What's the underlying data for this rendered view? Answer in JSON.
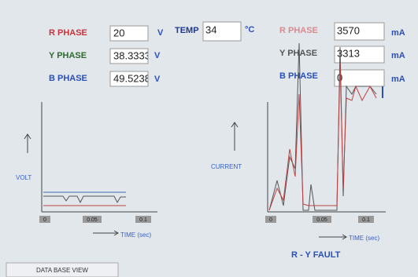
{
  "voltage_panel": {
    "rows": [
      {
        "label": "R PHASE",
        "value": "20",
        "unit": "V"
      },
      {
        "label": "Y PHASE",
        "value": "38.3333",
        "unit": "V"
      },
      {
        "label": "B PHASE",
        "value": "49.5238",
        "unit": "V"
      }
    ]
  },
  "temperature": {
    "label": "TEMP",
    "value": "34",
    "unit": "°C"
  },
  "current_panel": {
    "rows": [
      {
        "label": "R PHASE",
        "value": "3570",
        "unit": "mA"
      },
      {
        "label": "Y PHASE",
        "value": "3313",
        "unit": "mA"
      },
      {
        "label": "B PHASE",
        "value": "0",
        "unit": "mA"
      }
    ]
  },
  "voltage_graph": {
    "y_label": "VOLT",
    "x_label": "TIME (sec)",
    "x_ticks": [
      "0",
      "0.05",
      "0.1"
    ]
  },
  "current_graph": {
    "y_label": "CURRENT",
    "x_label": "TIME (sec)",
    "x_ticks": [
      "0",
      "0.05",
      "0.1"
    ],
    "status": "R - Y FAULT"
  },
  "tab": {
    "label": "DATA BASE VIEW"
  }
}
